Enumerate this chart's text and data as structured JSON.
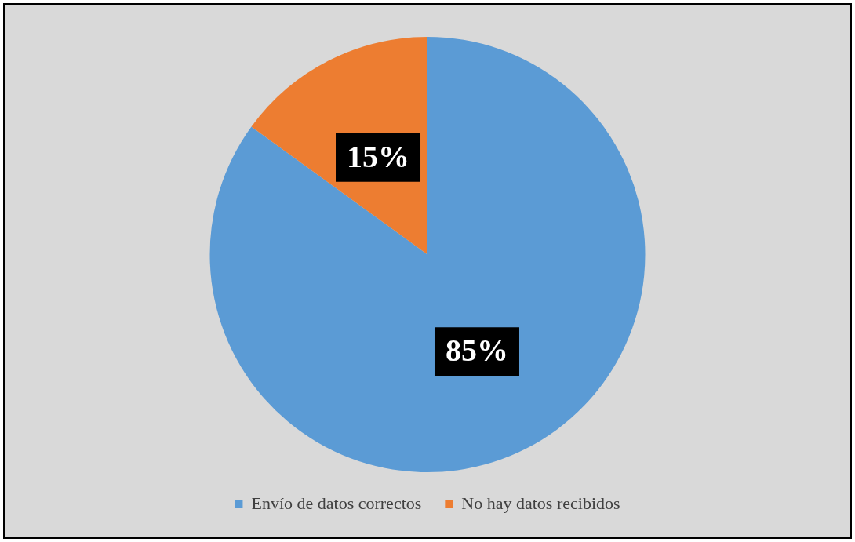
{
  "chart_data": {
    "type": "pie",
    "categories": [
      "Envío de datos correctos",
      "No hay datos recibidos"
    ],
    "values": [
      85,
      15
    ],
    "colors": [
      "#5b9bd5",
      "#ed7d31"
    ],
    "value_labels": [
      "85%",
      "15%"
    ],
    "legend": "bottom"
  }
}
